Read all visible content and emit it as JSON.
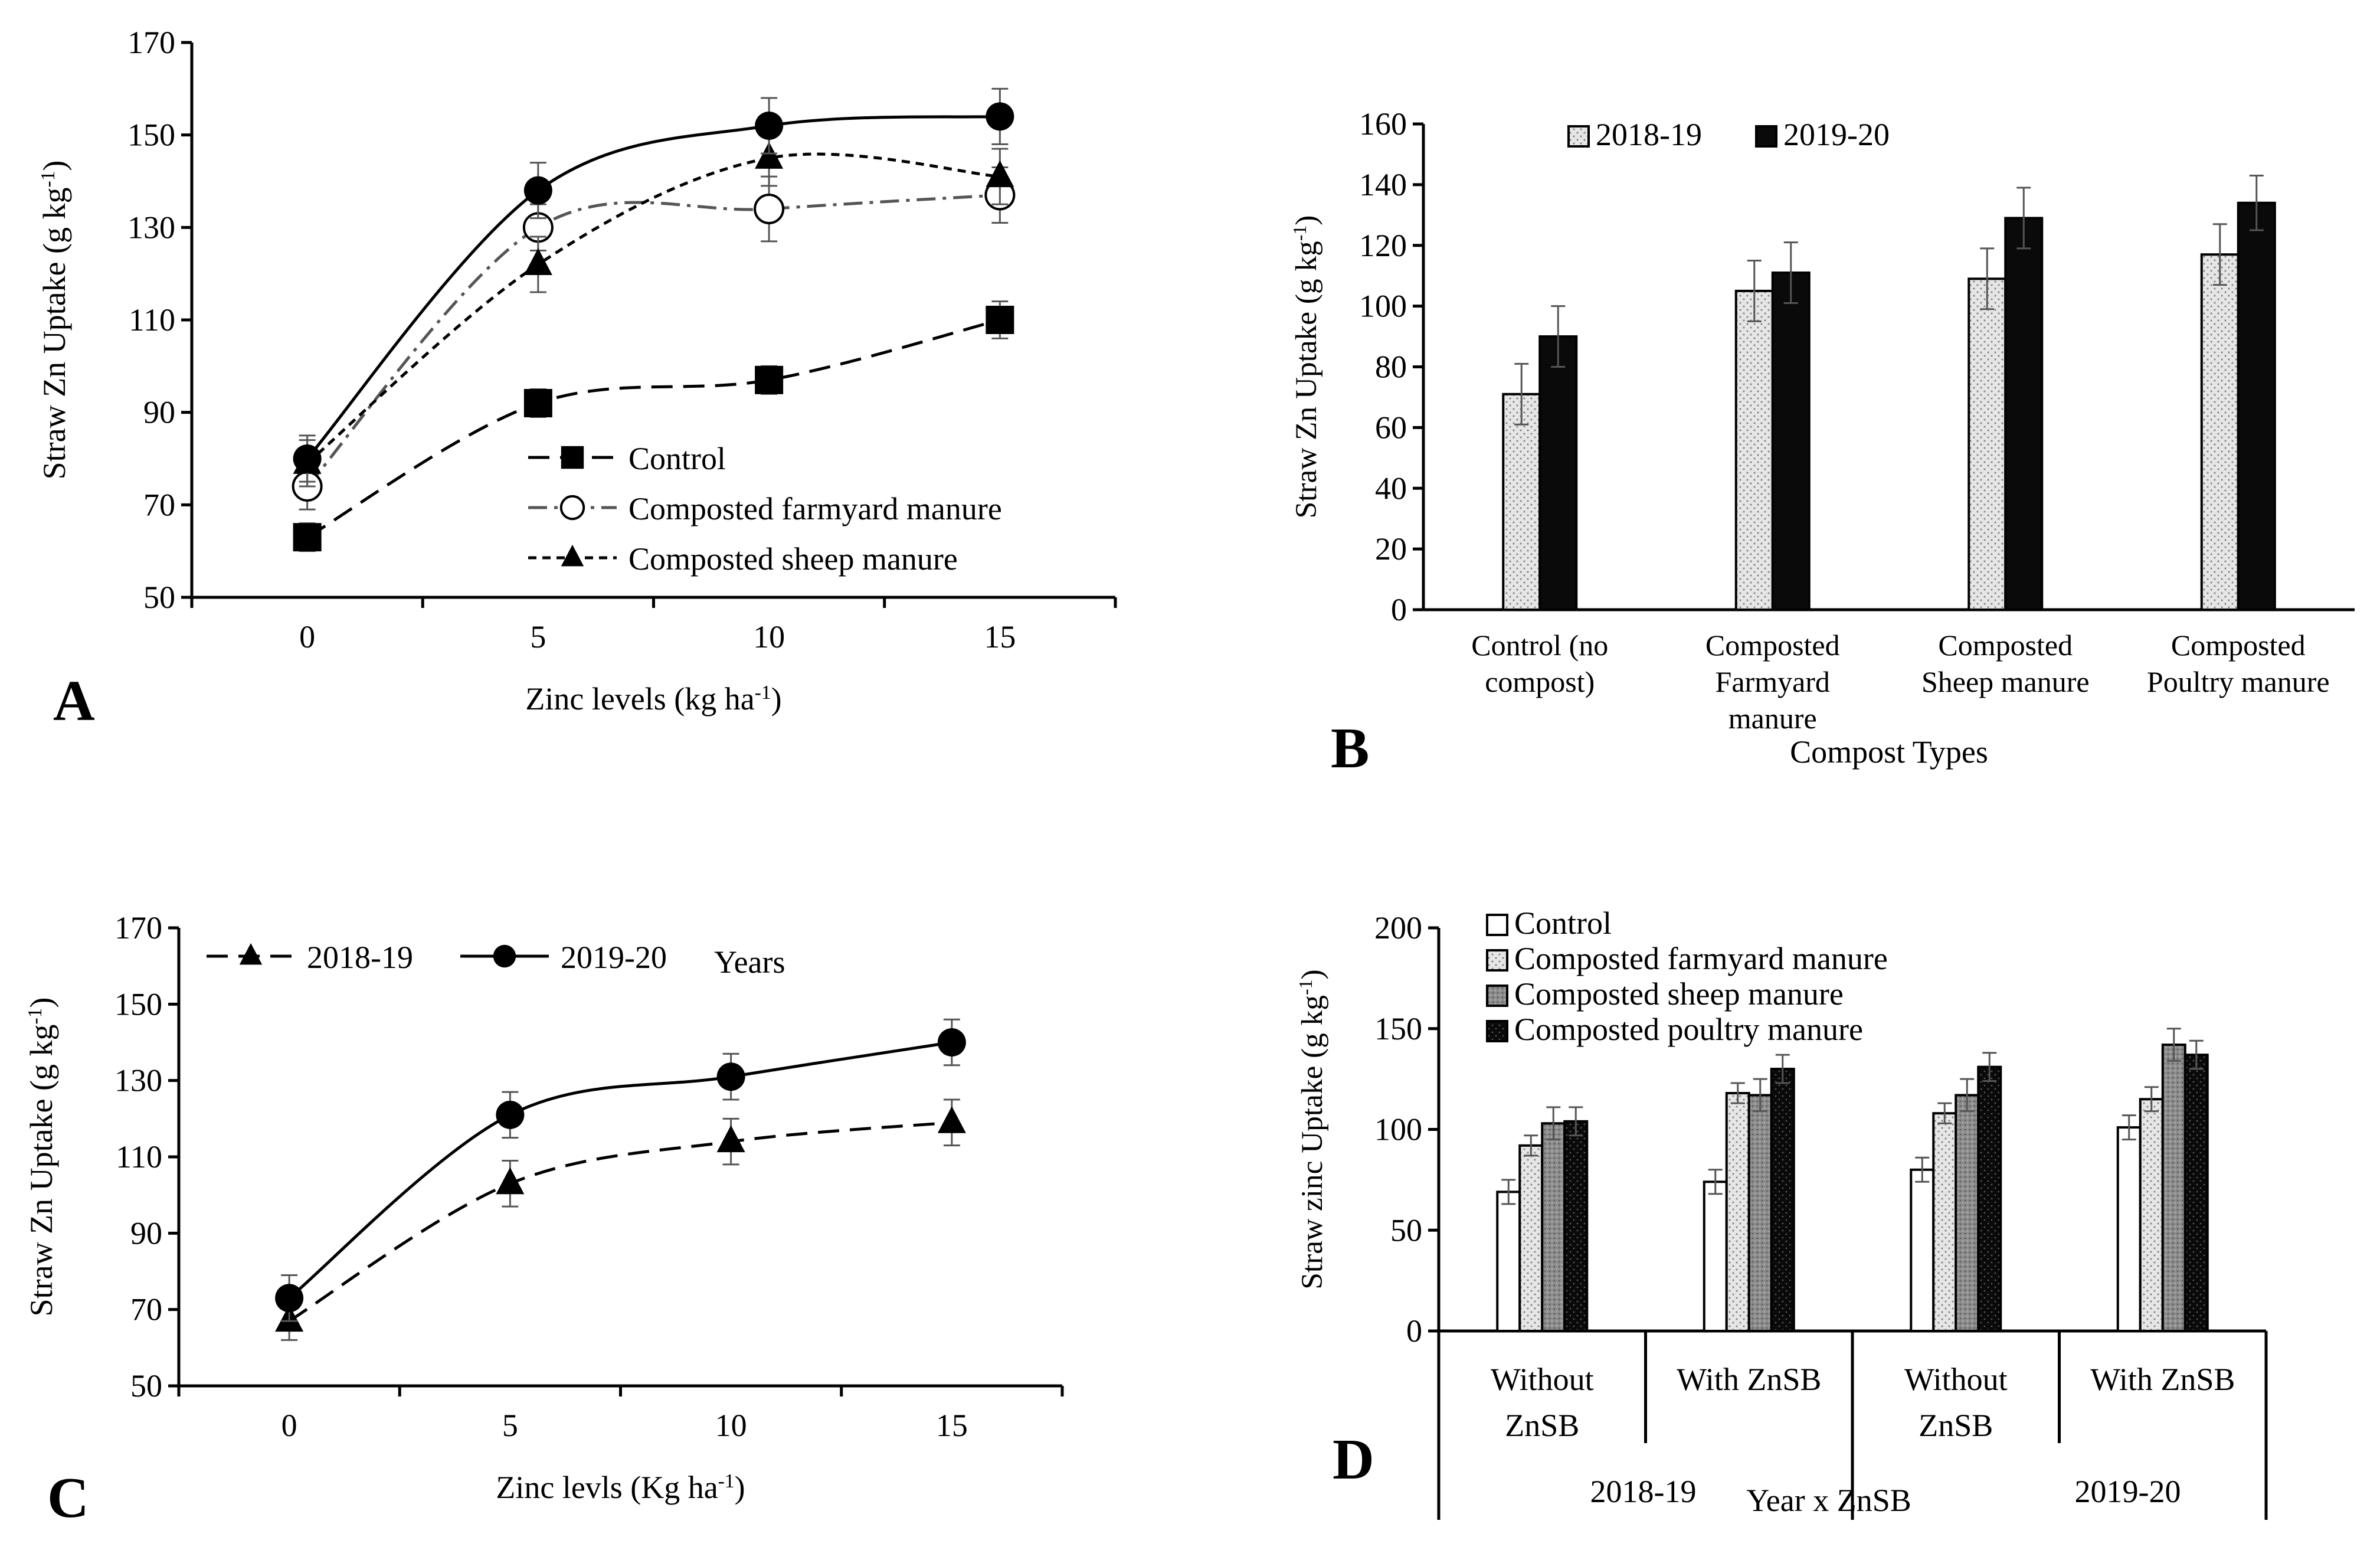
{
  "figure": {
    "panel_letters": [
      "A",
      "B",
      "C",
      "D"
    ]
  },
  "chart_data": [
    {
      "panel": "A",
      "type": "line",
      "xlabel": "Zinc levels (kg ha-1)",
      "xlabel_main": "Zinc levels (kg ha",
      "xlabel_sup": "-1",
      "xlabel_end": ")",
      "ylabel": "Straw Zn Uptake (g kg-1)",
      "ylabel_main": "Straw Zn Uptake (g kg",
      "ylabel_sup": "-1",
      "ylabel_end": ")",
      "ylim": [
        50,
        170
      ],
      "yticks": [
        "50",
        "70",
        "90",
        "110",
        "130",
        "150",
        "170"
      ],
      "x": [
        "0",
        "5",
        "10",
        "15"
      ],
      "legend_position": "inside-bottom-center",
      "series": [
        {
          "name": "Control",
          "values": [
            63,
            92,
            97,
            110
          ],
          "err": [
            3,
            3,
            3,
            4
          ],
          "marker": "square",
          "dash": "long-dash",
          "color": "#000000"
        },
        {
          "name": "Composted farmyard manure",
          "values": [
            74,
            130,
            134,
            137
          ],
          "err": [
            5,
            5,
            7,
            6
          ],
          "marker": "circle-open",
          "dash": "dash-dot",
          "color": "#555555"
        },
        {
          "name": "Composted sheep manure",
          "values": [
            79,
            122,
            145,
            141
          ],
          "err": [
            5,
            6,
            6,
            6
          ],
          "marker": "triangle",
          "dash": "short-dash",
          "color": "#000000"
        },
        {
          "name": "",
          "values": [
            80,
            138,
            152,
            154
          ],
          "err": [
            5,
            6,
            6,
            6
          ],
          "marker": "circle",
          "dash": "solid",
          "color": "#000000"
        }
      ]
    },
    {
      "panel": "B",
      "type": "bar",
      "xlabel": "Compost Types",
      "ylabel": "Straw Zn Uptake (g kg-1)",
      "ylabel_main": "Straw Zn Uptake (g kg",
      "ylabel_sup": "-1",
      "ylabel_end": ")",
      "ylim": [
        0,
        160
      ],
      "yticks": [
        "0",
        "20",
        "40",
        "60",
        "80",
        "100",
        "120",
        "140",
        "160"
      ],
      "categories": [
        [
          "Control (no",
          "compost)"
        ],
        [
          "Composted",
          "Farmyard",
          "manure"
        ],
        [
          "Composted",
          "Sheep manure"
        ],
        [
          "Composted",
          "Poultry manure"
        ]
      ],
      "legend_position": "top",
      "series": [
        {
          "name": "2018-19",
          "values": [
            71,
            105,
            109,
            117
          ],
          "err": [
            10,
            10,
            10,
            10
          ],
          "fill": "dotted-light"
        },
        {
          "name": "2019-20",
          "values": [
            90,
            111,
            129,
            134
          ],
          "err": [
            10,
            10,
            10,
            9
          ],
          "fill": "black"
        }
      ]
    },
    {
      "panel": "C",
      "type": "line",
      "xlabel": "Zinc levls (Kg ha-1)",
      "xlabel_main": "Zinc levls (Kg ha",
      "xlabel_sup": "-1",
      "xlabel_end": ")",
      "ylabel": "Straw Zn Uptake (g kg-1)",
      "ylabel_main": "Straw Zn Uptake (g kg",
      "ylabel_sup": "-1",
      "ylabel_end": ")",
      "ylim": [
        50,
        170
      ],
      "yticks": [
        "50",
        "70",
        "90",
        "110",
        "130",
        "150",
        "170"
      ],
      "x": [
        "0",
        "5",
        "10",
        "15"
      ],
      "legend_title": "Years",
      "legend_position": "top-left",
      "series": [
        {
          "name": "2018-19",
          "values": [
            67,
            103,
            114,
            119
          ],
          "err": [
            5,
            6,
            6,
            6
          ],
          "marker": "triangle",
          "dash": "long-dash"
        },
        {
          "name": "2019-20",
          "values": [
            73,
            121,
            131,
            140
          ],
          "err": [
            6,
            6,
            6,
            6
          ],
          "marker": "circle",
          "dash": "solid"
        }
      ]
    },
    {
      "panel": "D",
      "type": "bar",
      "xlabel": "Year x ZnSB",
      "ylabel": "Straw zinc Uptake (g kg-1)",
      "ylabel_main": "Straw zinc Uptake (g kg",
      "ylabel_sup": "-1",
      "ylabel_end": ")",
      "ylim": [
        0,
        200
      ],
      "yticks": [
        "0",
        "50",
        "100",
        "150",
        "200"
      ],
      "categories": [
        [
          "Without",
          "ZnSB"
        ],
        [
          "With ZnSB"
        ],
        [
          "Without",
          "ZnSB"
        ],
        [
          "With ZnSB"
        ]
      ],
      "group_labels": [
        "2018-19",
        "2019-20"
      ],
      "legend_position": "top-left",
      "series": [
        {
          "name": "Control",
          "values": [
            69,
            74,
            80,
            101
          ],
          "err": [
            6,
            6,
            6,
            6
          ],
          "fill": "white"
        },
        {
          "name": "Composted farmyard manure",
          "values": [
            92,
            118,
            108,
            115
          ],
          "err": [
            5,
            5,
            5,
            6
          ],
          "fill": "dotted-light"
        },
        {
          "name": "Composted sheep manure",
          "values": [
            103,
            117,
            117,
            142
          ],
          "err": [
            8,
            8,
            8,
            8
          ],
          "fill": "gray-dense"
        },
        {
          "name": "Composted poultry manure",
          "values": [
            104,
            130,
            131,
            137
          ],
          "err": [
            7,
            7,
            7,
            7
          ],
          "fill": "black-dotted"
        }
      ]
    }
  ]
}
